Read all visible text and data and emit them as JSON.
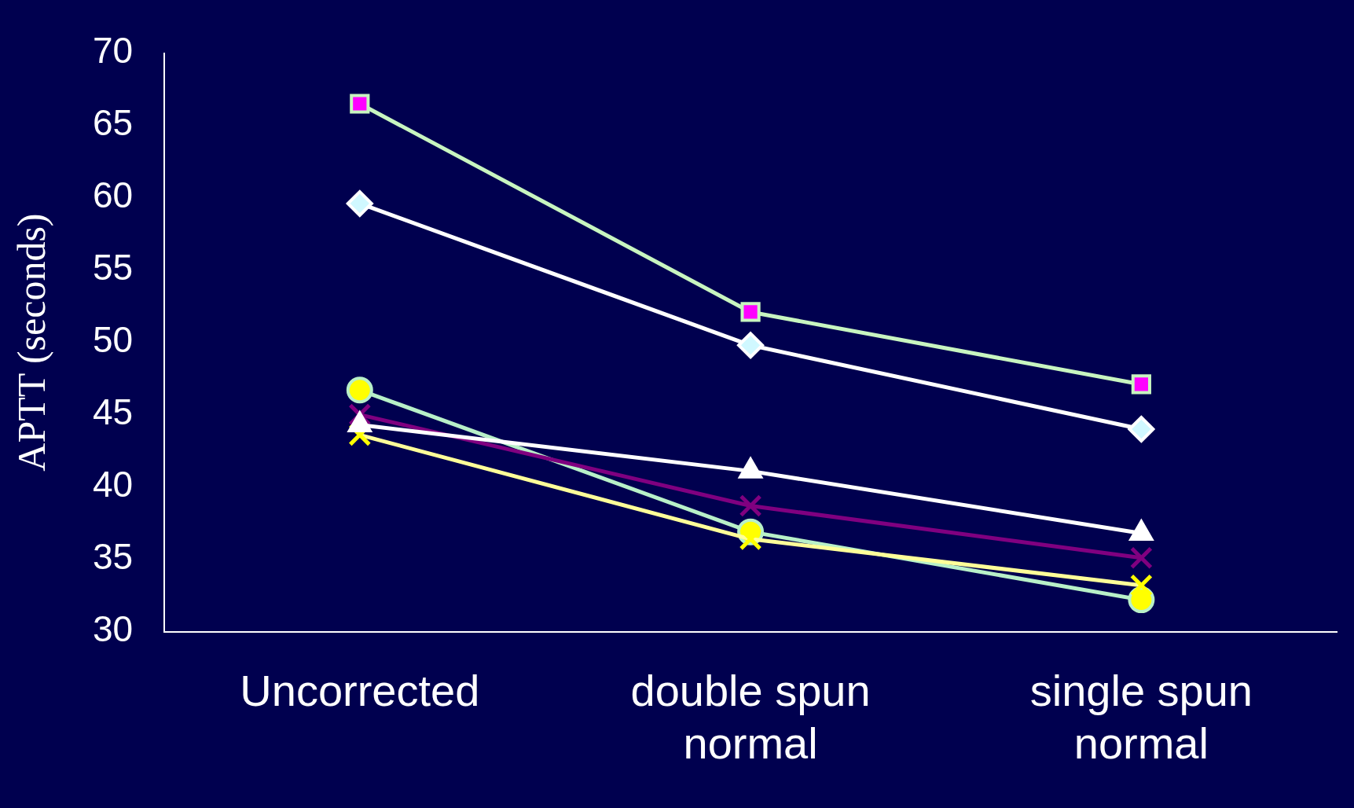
{
  "chart_data": {
    "type": "line",
    "ylabel": "APTT (seconds)",
    "categories": [
      "Uncorrected",
      "double spun normal",
      "single spun normal"
    ],
    "ylim": [
      30,
      70
    ],
    "yticks": [
      30,
      35,
      40,
      45,
      50,
      55,
      60,
      65,
      70
    ],
    "grid": false,
    "legend": false,
    "series": [
      {
        "color": "#c8f5c0",
        "marker": "square",
        "colors": [
          "#ff00ff",
          "#ff00ff",
          "#ff00ff"
        ],
        "values": [
          66.5,
          52.1,
          47.1
        ]
      },
      {
        "color": "#ffffff",
        "marker": "diamond",
        "colors": [
          "#d0f8ff",
          "#d0f8ff",
          "#d0f8ff"
        ],
        "values": [
          59.6,
          49.8,
          44
        ]
      },
      {
        "color": "#ffffff",
        "marker": "triangle",
        "values": [
          44.3,
          41.1,
          36.8
        ]
      },
      {
        "color": "#800080",
        "marker": "cross",
        "values": [
          45,
          38.7,
          35.1
        ]
      },
      {
        "color": "#ffff99",
        "marker": "cross",
        "colors": [
          "#ffff00",
          "#ffff00",
          "#ffff00"
        ],
        "values": [
          43.6,
          36.4,
          33.2
        ]
      },
      {
        "color": "#b8f0c8",
        "marker": "circle",
        "colors": [
          "#ffff00",
          "#ffff00",
          "#ffff00"
        ],
        "values": [
          46.7,
          36.9,
          32.2
        ]
      }
    ]
  }
}
